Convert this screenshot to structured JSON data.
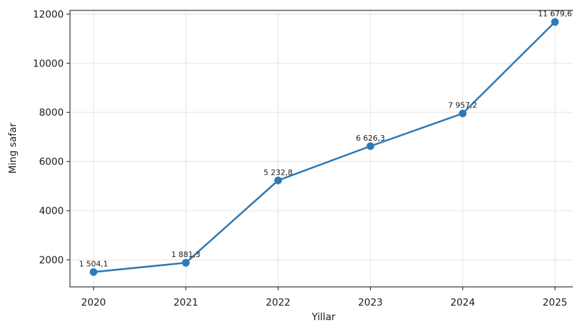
{
  "chart_data": {
    "type": "line",
    "title": "",
    "xlabel": "Yillar",
    "ylabel": "Ming safar",
    "categories": [
      "2020",
      "2021",
      "2022",
      "2023",
      "2024",
      "2025"
    ],
    "series": [
      {
        "values": [
          1504.1,
          1881.3,
          5232.8,
          6626.3,
          7957.2,
          11679.6
        ],
        "labels": [
          "1 504,1",
          "1 881,3",
          "5 232,8",
          "6 626,3",
          "7 957,2",
          "11 679,6"
        ]
      }
    ],
    "yticks": [
      "2000",
      "4000",
      "6000",
      "8000",
      "10000",
      "12000"
    ],
    "ytick_values": [
      2000,
      4000,
      6000,
      8000,
      10000,
      12000
    ],
    "ylim": [
      900,
      12150
    ],
    "grid": true,
    "legend": "none",
    "line_color": "#2e7ab6"
  }
}
